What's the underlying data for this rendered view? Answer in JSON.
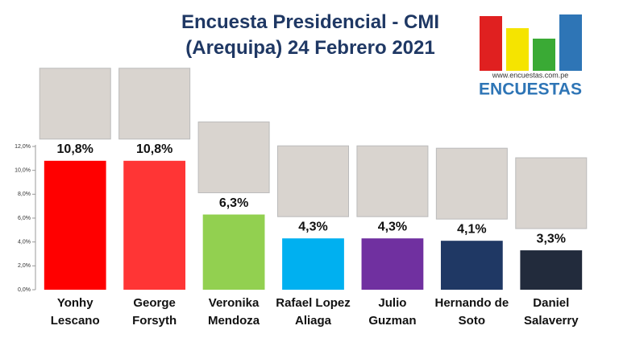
{
  "chart_data": {
    "type": "bar",
    "title": "Encuesta Presidencial - CMI\n(Arequipa) 24 Febrero 2021",
    "categories": [
      "Yonhy\nLescano",
      "George\nForsyth",
      "Veronika\nMendoza",
      "Rafael Lopez\nAliaga",
      "Julio\nGuzman",
      "Hernando de\nSoto",
      "Daniel\nSalaverry"
    ],
    "values": [
      10.8,
      10.8,
      6.3,
      4.3,
      4.3,
      4.1,
      3.3
    ],
    "value_labels": [
      "10,8%",
      "10,8%",
      "6,3%",
      "4,3%",
      "4,3%",
      "4,1%",
      "3,3%"
    ],
    "colors": [
      "#ff0000",
      "#ff3535",
      "#92d050",
      "#00b0f0",
      "#7030a0",
      "#1f3864",
      "#222b3c"
    ],
    "ylim": [
      0,
      12
    ],
    "yticks": [
      {
        "value": 0,
        "label": "0,0%"
      },
      {
        "value": 2,
        "label": "2,0%"
      },
      {
        "value": 4,
        "label": "4,0%"
      },
      {
        "value": 6,
        "label": "6,0%"
      },
      {
        "value": 8,
        "label": "8,0%"
      },
      {
        "value": 10,
        "label": "10,0%"
      },
      {
        "value": 12,
        "label": "12,0%"
      }
    ]
  },
  "logo": {
    "url": "www.encuestas.com.pe",
    "name": "ENCUESTAS"
  }
}
